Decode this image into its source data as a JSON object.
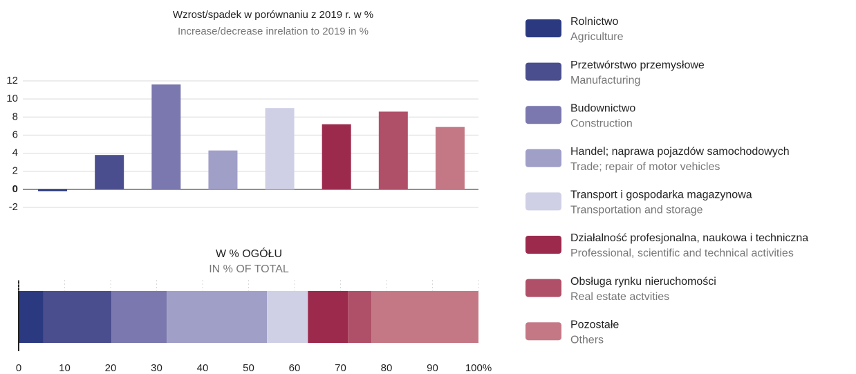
{
  "chart_data": [
    {
      "type": "bar",
      "title": "Wzrost/spadek w porównaniu z 2019 r. w %",
      "subtitle": "Increase/decrease inrelation to 2019  in %",
      "values": [
        -0.2,
        3.8,
        11.6,
        4.3,
        9.0,
        7.2,
        8.6,
        6.9
      ],
      "ylim": [
        -2,
        12
      ],
      "yticks": [
        -2,
        0,
        2,
        4,
        6,
        8,
        10,
        12
      ],
      "grid": true
    },
    {
      "type": "stacked-hbar",
      "title": "W % OGÓŁU",
      "subtitle": "IN % OF TOTAL",
      "values": [
        5.4,
        14.8,
        12.0,
        21.8,
        8.9,
        8.7,
        5.1,
        23.3
      ],
      "xlim": [
        0,
        100
      ],
      "xticks": [
        0,
        10,
        20,
        30,
        40,
        50,
        60,
        70,
        80,
        90,
        {
          "value": 100,
          "label": "100%"
        }
      ]
    }
  ],
  "legend": {
    "items": [
      {
        "name": "Rolnictwo",
        "subtitle": "Agriculture",
        "color": "#2b3a80"
      },
      {
        "name": "Przetwórstwo przemysłowe",
        "subtitle": "Manufacturing",
        "color": "#4a4e8f"
      },
      {
        "name": "Budownictwo",
        "subtitle": "Construction",
        "color": "#7a78ae"
      },
      {
        "name": "Handel; naprawa pojazdów samochodowych",
        "subtitle": "Trade; repair of motor vehicles",
        "color": "#a09fc8"
      },
      {
        "name": "Transport i gospodarka magazynowa",
        "subtitle": "Transportation and storage",
        "color": "#cfd0e6"
      },
      {
        "name": "Działalność profesjonalna, naukowa i techniczna",
        "subtitle": "Professional, scientific and technical activities",
        "color": "#9c2a4d"
      },
      {
        "name": "Obsługa rynku nieruchomości",
        "subtitle": "Real estate actvities",
        "color": "#b04f68"
      },
      {
        "name": "Pozostałe",
        "subtitle": "Others",
        "color": "#c47886"
      }
    ]
  }
}
